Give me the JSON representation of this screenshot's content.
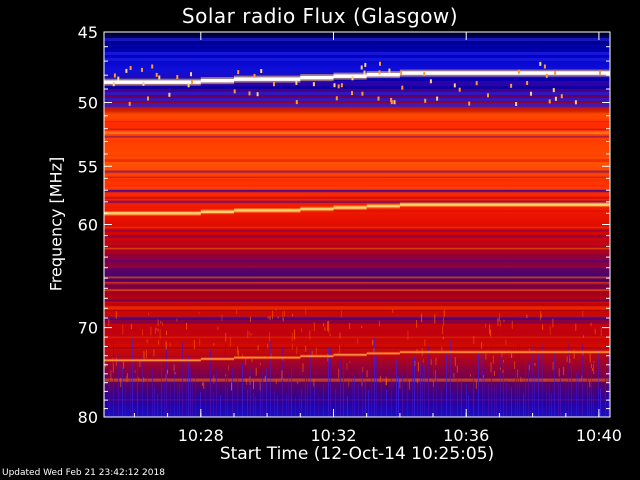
{
  "chart_data": {
    "type": "heatmap",
    "title": "Solar radio Flux (Glasgow)",
    "xlabel": "Start Time (12-Oct-14 10:25:05)",
    "ylabel": "Frequency [MHz]",
    "updated": "Updated Wed Feb 21 23:42:12 2018",
    "x_range_minutes": [
      "10:25:05",
      "10:40:20"
    ],
    "x_ticks": [
      "10:28",
      "10:32",
      "10:36",
      "10:40"
    ],
    "x_tick_minutes": [
      28,
      32,
      36,
      40
    ],
    "y_range_mhz": [
      45,
      80
    ],
    "y_scale": "log",
    "y_ticks": [
      "45",
      "50",
      "55",
      "60",
      "70",
      "80"
    ],
    "y_tick_values": [
      45,
      50,
      55,
      60,
      70,
      80
    ],
    "color_scale": [
      "#000033",
      "#0000cc",
      "#cc0000",
      "#ff3300",
      "#ff9900",
      "#ffffff"
    ],
    "bright_lines_mhz": [
      48.5,
      59,
      73.5
    ],
    "bright_line_shift_times": [
      "10:28",
      "10:29",
      "10:31",
      "10:32",
      "10:33",
      "10:34"
    ]
  }
}
